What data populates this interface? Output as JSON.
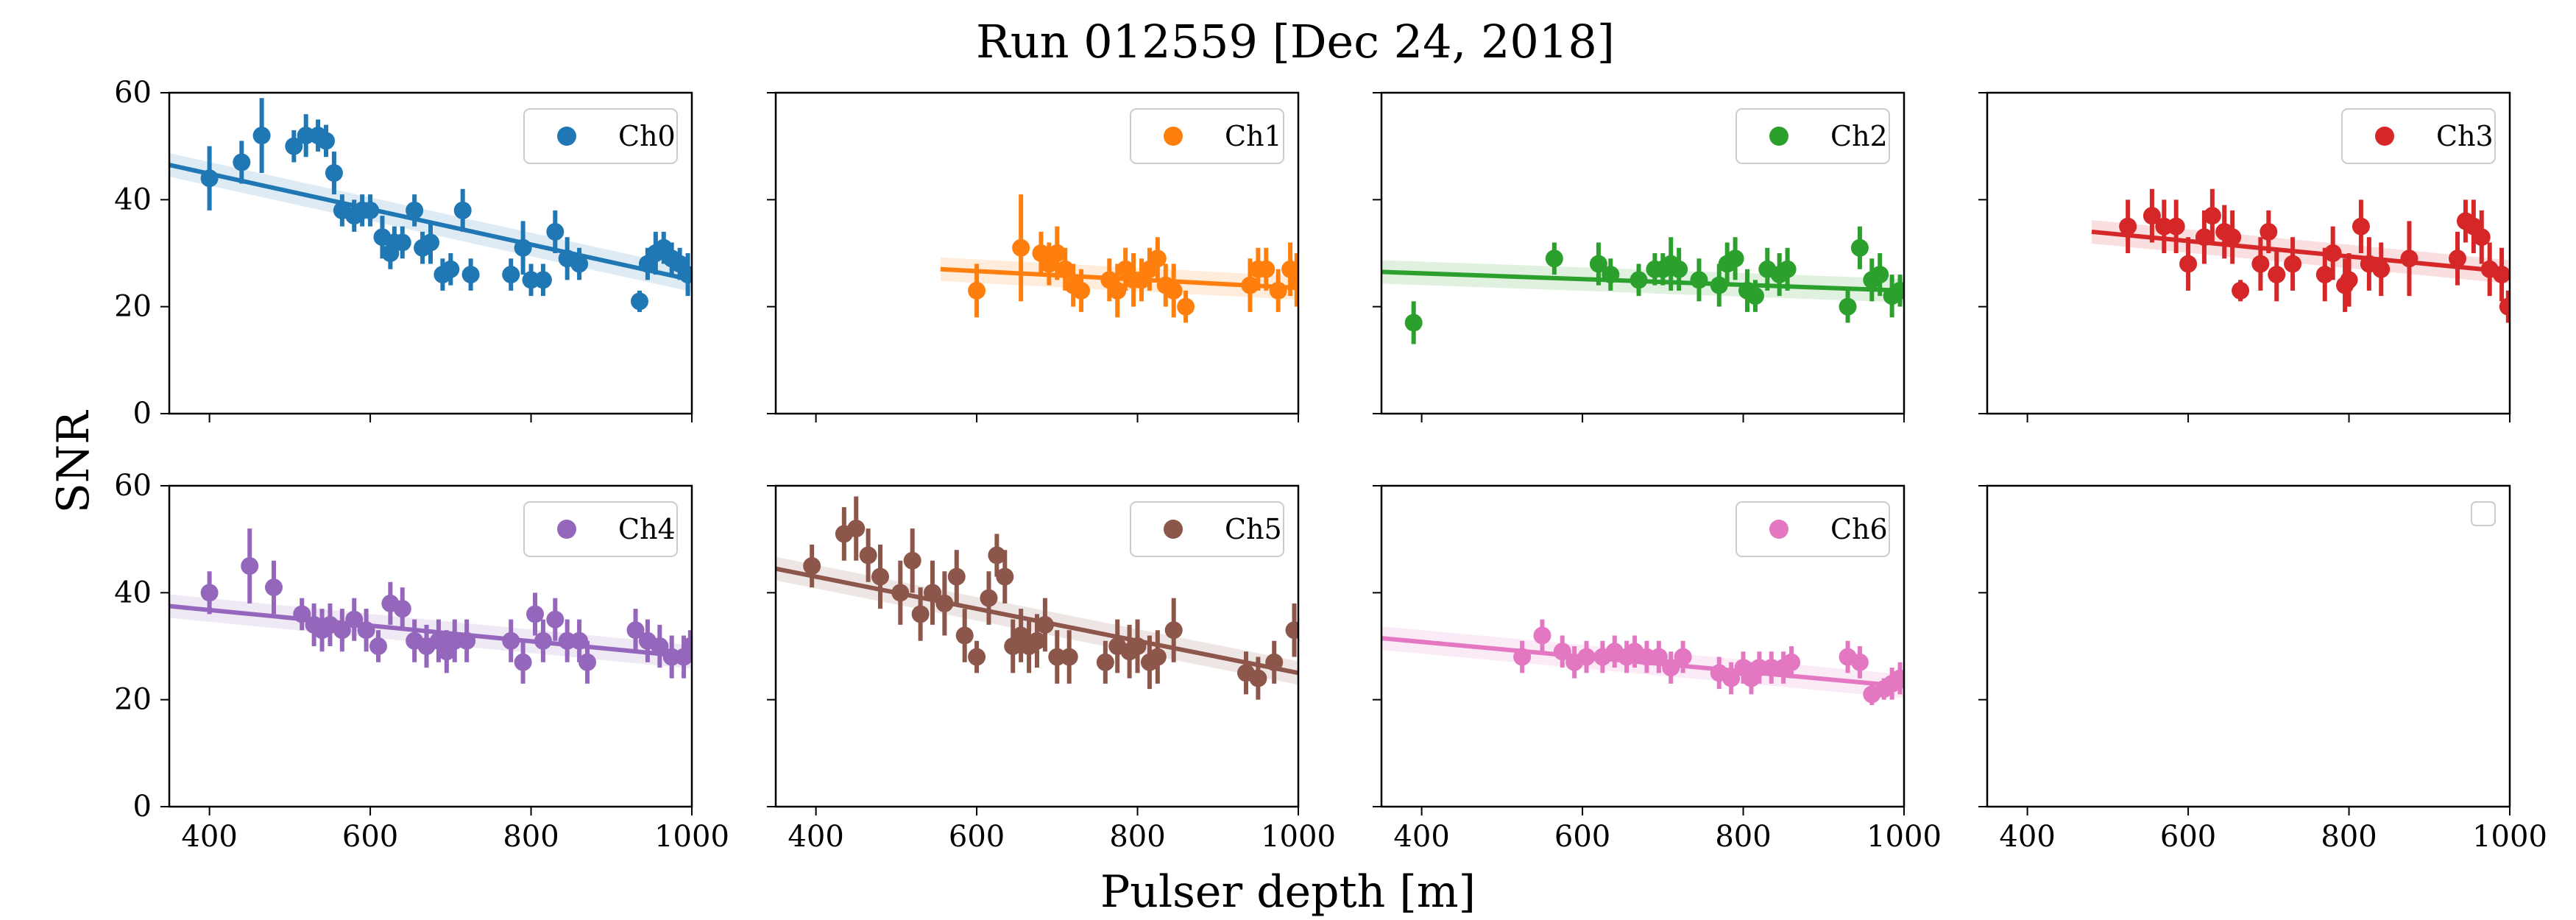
{
  "chart_data": {
    "type": "scatter",
    "title": "Run 012559 [Dec 24, 2018]",
    "xlabel": "Pulser depth [m]",
    "ylabel": "SNR",
    "xlim": [
      350,
      1000
    ],
    "ylim": [
      0,
      60
    ],
    "x_ticks": [
      "400",
      "600",
      "800",
      "1000"
    ],
    "y_ticks": [
      "0",
      "20",
      "40",
      "60"
    ],
    "grid": false,
    "legend_placement": "top-right",
    "panels": [
      {
        "name": "Ch0",
        "color": "#1f77b4",
        "fit": [
          350,
          46.5,
          1000,
          25
        ],
        "points": [
          [
            400,
            44,
            6
          ],
          [
            440,
            47,
            4
          ],
          [
            465,
            52,
            7
          ],
          [
            505,
            50,
            3
          ],
          [
            520,
            52,
            4
          ],
          [
            535,
            52,
            3
          ],
          [
            545,
            51,
            3
          ],
          [
            555,
            45,
            4
          ],
          [
            565,
            38,
            3
          ],
          [
            580,
            37,
            3
          ],
          [
            590,
            38,
            3
          ],
          [
            600,
            38,
            3
          ],
          [
            615,
            33,
            4
          ],
          [
            625,
            30,
            3
          ],
          [
            630,
            32,
            3
          ],
          [
            640,
            32,
            3
          ],
          [
            655,
            38,
            3
          ],
          [
            665,
            31,
            3
          ],
          [
            675,
            32,
            4
          ],
          [
            690,
            26,
            3
          ],
          [
            700,
            27,
            3
          ],
          [
            715,
            38,
            4
          ],
          [
            725,
            26,
            3
          ],
          [
            775,
            26,
            3
          ],
          [
            790,
            31,
            5
          ],
          [
            800,
            25,
            3
          ],
          [
            815,
            25,
            3
          ],
          [
            830,
            34,
            4
          ],
          [
            845,
            29,
            4
          ],
          [
            860,
            28,
            3
          ],
          [
            935,
            21,
            2
          ],
          [
            945,
            28,
            3
          ],
          [
            955,
            30,
            4
          ],
          [
            965,
            31,
            3
          ],
          [
            975,
            29,
            3
          ],
          [
            985,
            28,
            3
          ],
          [
            995,
            26,
            4
          ]
        ]
      },
      {
        "name": "Ch1",
        "color": "#ff7f0e",
        "fit": [
          555,
          27,
          1000,
          23.5
        ],
        "points": [
          [
            600,
            23,
            5
          ],
          [
            655,
            31,
            10
          ],
          [
            680,
            30,
            4
          ],
          [
            690,
            28,
            4
          ],
          [
            700,
            30,
            5
          ],
          [
            710,
            27,
            4
          ],
          [
            720,
            24,
            4
          ],
          [
            730,
            23,
            4
          ],
          [
            765,
            25,
            4
          ],
          [
            775,
            23,
            5
          ],
          [
            785,
            27,
            4
          ],
          [
            795,
            25,
            5
          ],
          [
            805,
            25,
            4
          ],
          [
            815,
            27,
            4
          ],
          [
            825,
            29,
            4
          ],
          [
            835,
            24,
            4
          ],
          [
            845,
            23,
            5
          ],
          [
            860,
            20,
            3
          ],
          [
            940,
            24,
            5
          ],
          [
            950,
            27,
            4
          ],
          [
            960,
            27,
            4
          ],
          [
            975,
            23,
            4
          ],
          [
            990,
            27,
            5
          ],
          [
            998,
            25,
            5
          ]
        ]
      },
      {
        "name": "Ch2",
        "color": "#2ca02c",
        "fit": [
          350,
          26.5,
          1000,
          23
        ],
        "points": [
          [
            390,
            17,
            4
          ],
          [
            565,
            29,
            3
          ],
          [
            620,
            28,
            4
          ],
          [
            635,
            26,
            3
          ],
          [
            670,
            25,
            3
          ],
          [
            690,
            27,
            3
          ],
          [
            700,
            27,
            3
          ],
          [
            710,
            28,
            5
          ],
          [
            720,
            27,
            4
          ],
          [
            745,
            25,
            4
          ],
          [
            770,
            24,
            4
          ],
          [
            780,
            28,
            4
          ],
          [
            790,
            29,
            4
          ],
          [
            805,
            23,
            4
          ],
          [
            815,
            22,
            3
          ],
          [
            830,
            27,
            4
          ],
          [
            845,
            26,
            4
          ],
          [
            855,
            27,
            4
          ],
          [
            930,
            20,
            3
          ],
          [
            945,
            31,
            4
          ],
          [
            960,
            25,
            4
          ],
          [
            970,
            26,
            4
          ],
          [
            985,
            22,
            4
          ],
          [
            995,
            23,
            3
          ]
        ]
      },
      {
        "name": "Ch3",
        "color": "#d62728",
        "fit": [
          480,
          34,
          1000,
          26.5
        ],
        "points": [
          [
            525,
            35,
            5
          ],
          [
            555,
            37,
            5
          ],
          [
            570,
            35,
            5
          ],
          [
            585,
            35,
            5
          ],
          [
            600,
            28,
            5
          ],
          [
            620,
            33,
            5
          ],
          [
            630,
            37,
            5
          ],
          [
            645,
            34,
            5
          ],
          [
            655,
            33,
            5
          ],
          [
            665,
            23,
            2
          ],
          [
            690,
            28,
            5
          ],
          [
            700,
            34,
            4
          ],
          [
            710,
            26,
            5
          ],
          [
            730,
            28,
            5
          ],
          [
            770,
            26,
            5
          ],
          [
            780,
            30,
            5
          ],
          [
            795,
            24,
            5
          ],
          [
            800,
            25,
            5
          ],
          [
            815,
            35,
            5
          ],
          [
            825,
            28,
            5
          ],
          [
            840,
            27,
            5
          ],
          [
            875,
            29,
            7
          ],
          [
            935,
            29,
            5
          ],
          [
            945,
            36,
            4
          ],
          [
            955,
            35,
            5
          ],
          [
            965,
            33,
            5
          ],
          [
            975,
            27,
            5
          ],
          [
            990,
            26,
            5
          ],
          [
            998,
            20,
            3
          ]
        ]
      },
      {
        "name": "Ch4",
        "color": "#9467bd",
        "fit": [
          350,
          37.5,
          1000,
          28
        ],
        "points": [
          [
            400,
            40,
            4
          ],
          [
            450,
            45,
            7
          ],
          [
            480,
            41,
            5
          ],
          [
            515,
            36,
            3
          ],
          [
            530,
            34,
            4
          ],
          [
            540,
            33,
            4
          ],
          [
            550,
            34,
            4
          ],
          [
            565,
            33,
            4
          ],
          [
            580,
            35,
            4
          ],
          [
            595,
            33,
            4
          ],
          [
            610,
            30,
            3
          ],
          [
            625,
            38,
            4
          ],
          [
            640,
            37,
            4
          ],
          [
            655,
            31,
            4
          ],
          [
            670,
            30,
            4
          ],
          [
            685,
            31,
            4
          ],
          [
            695,
            29,
            4
          ],
          [
            705,
            31,
            4
          ],
          [
            720,
            31,
            4
          ],
          [
            775,
            31,
            4
          ],
          [
            790,
            27,
            4
          ],
          [
            805,
            36,
            4
          ],
          [
            815,
            31,
            4
          ],
          [
            830,
            35,
            4
          ],
          [
            845,
            31,
            4
          ],
          [
            860,
            31,
            4
          ],
          [
            870,
            27,
            4
          ],
          [
            930,
            33,
            4
          ],
          [
            945,
            31,
            4
          ],
          [
            960,
            30,
            4
          ],
          [
            975,
            28,
            4
          ],
          [
            990,
            28,
            4
          ],
          [
            998,
            30,
            3
          ]
        ]
      },
      {
        "name": "Ch5",
        "color": "#8c564b",
        "fit": [
          350,
          44.5,
          1000,
          25
        ],
        "points": [
          [
            395,
            45,
            4
          ],
          [
            435,
            51,
            5
          ],
          [
            450,
            52,
            6
          ],
          [
            465,
            47,
            5
          ],
          [
            480,
            43,
            6
          ],
          [
            505,
            40,
            6
          ],
          [
            520,
            46,
            6
          ],
          [
            530,
            36,
            5
          ],
          [
            545,
            40,
            6
          ],
          [
            560,
            38,
            6
          ],
          [
            575,
            43,
            5
          ],
          [
            585,
            32,
            5
          ],
          [
            600,
            28,
            3
          ],
          [
            615,
            39,
            5
          ],
          [
            625,
            47,
            4
          ],
          [
            635,
            43,
            5
          ],
          [
            645,
            30,
            5
          ],
          [
            655,
            32,
            5
          ],
          [
            665,
            30,
            5
          ],
          [
            675,
            31,
            5
          ],
          [
            685,
            34,
            5
          ],
          [
            700,
            28,
            5
          ],
          [
            715,
            28,
            5
          ],
          [
            760,
            27,
            4
          ],
          [
            775,
            30,
            5
          ],
          [
            790,
            29,
            5
          ],
          [
            800,
            30,
            5
          ],
          [
            815,
            27,
            5
          ],
          [
            825,
            28,
            5
          ],
          [
            845,
            33,
            6
          ],
          [
            935,
            25,
            4
          ],
          [
            950,
            24,
            4
          ],
          [
            970,
            27,
            4
          ],
          [
            995,
            33,
            5
          ]
        ]
      },
      {
        "name": "Ch6",
        "color": "#e377c2",
        "fit": [
          350,
          31.5,
          1000,
          22.5
        ],
        "points": [
          [
            525,
            28,
            3
          ],
          [
            550,
            32,
            3
          ],
          [
            575,
            29,
            3
          ],
          [
            590,
            27,
            3
          ],
          [
            605,
            28,
            3
          ],
          [
            625,
            28,
            3
          ],
          [
            640,
            29,
            3
          ],
          [
            655,
            28,
            3
          ],
          [
            665,
            29,
            3
          ],
          [
            680,
            28,
            3
          ],
          [
            695,
            28,
            3
          ],
          [
            710,
            26,
            3
          ],
          [
            725,
            28,
            3
          ],
          [
            770,
            25,
            3
          ],
          [
            785,
            24,
            3
          ],
          [
            800,
            26,
            3
          ],
          [
            810,
            24,
            3
          ],
          [
            820,
            26,
            3
          ],
          [
            835,
            26,
            3
          ],
          [
            850,
            26,
            3
          ],
          [
            860,
            27,
            3
          ],
          [
            930,
            28,
            3
          ],
          [
            945,
            27,
            3
          ],
          [
            960,
            21,
            2
          ],
          [
            975,
            22,
            2
          ],
          [
            985,
            23,
            3
          ],
          [
            995,
            24,
            3
          ]
        ]
      },
      {
        "name": "",
        "color": "",
        "fit": null,
        "points": []
      }
    ]
  }
}
